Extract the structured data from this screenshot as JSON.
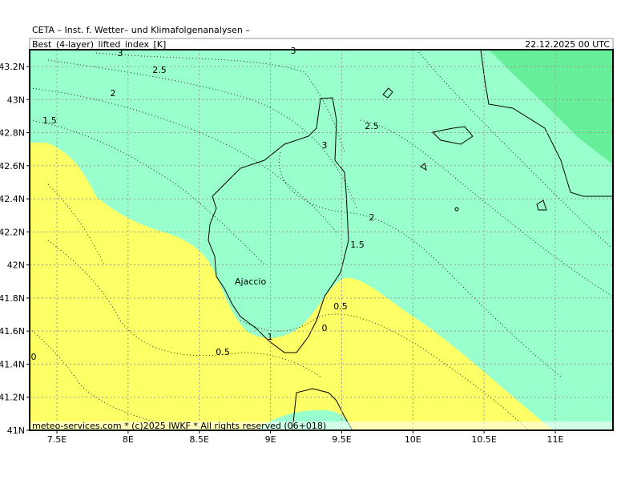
{
  "header": {
    "institute": "CETA – Inst. f. Wetter– und Klimafolgenanalysen –",
    "parameter": "Best_(4-layer)_lifted_index_[K]",
    "valid_time": "22.12.2025 00 UTC"
  },
  "map": {
    "lat_labels": [
      "43.2N",
      "43N",
      "42.8N",
      "42.6N",
      "42.4N",
      "42.2N",
      "42N",
      "41.8N",
      "41.6N",
      "41.4N",
      "41.2N",
      "41N"
    ],
    "lon_labels": [
      "7.5E",
      "8E",
      "8.5E",
      "9E",
      "9.5E",
      "10E",
      "10.5E",
      "11E"
    ],
    "contour_labels": [
      3,
      2.5,
      2,
      1.5,
      3,
      3,
      2.5,
      2,
      1.5,
      1,
      0.5,
      0,
      0.5,
      0
    ],
    "places": [
      "Ajaccio"
    ]
  },
  "footer": "meteo-services.com * (c)2025 IWKF * All rights reserved (06+018)"
}
